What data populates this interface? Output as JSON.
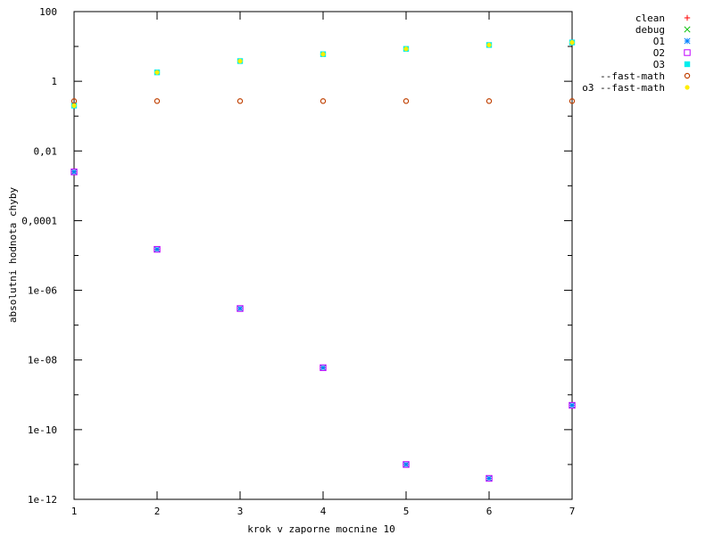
{
  "chart_data": {
    "type": "scatter",
    "title": "",
    "xlabel": "krok v zaporne mocnine 10",
    "ylabel": "absolutni hodnota chyby",
    "x": [
      1,
      2,
      3,
      4,
      5,
      6,
      7
    ],
    "xlim": [
      1,
      7
    ],
    "x_ticks": [
      "1",
      "2",
      "3",
      "4",
      "5",
      "6",
      "7"
    ],
    "ylim": [
      1e-12,
      100
    ],
    "yscale": "log",
    "y_ticks": [
      {
        "value": 100,
        "label": "100"
      },
      {
        "value": 1,
        "label": "1"
      },
      {
        "value": 0.01,
        "label": "0,01"
      },
      {
        "value": 0.0001,
        "label": "0,0001"
      },
      {
        "value": 1e-06,
        "label": "1e-06"
      },
      {
        "value": 1e-08,
        "label": "1e-08"
      },
      {
        "value": 1e-10,
        "label": "1e-10"
      },
      {
        "value": 1e-12,
        "label": "1e-12"
      }
    ],
    "grid": false,
    "legend_position": "outside-right",
    "series": [
      {
        "name": "clean",
        "marker": "plus",
        "color": "#ff0000",
        "values": [
          0.0025,
          1.5e-05,
          3e-07,
          6e-09,
          1e-11,
          4e-12,
          5e-10
        ]
      },
      {
        "name": "debug",
        "marker": "cross",
        "color": "#00c000",
        "values": [
          0.0025,
          1.5e-05,
          3e-07,
          6e-09,
          1e-11,
          4e-12,
          5e-10
        ]
      },
      {
        "name": "O1",
        "marker": "star",
        "color": "#0080ff",
        "values": [
          0.0025,
          1.5e-05,
          3e-07,
          6e-09,
          1e-11,
          4e-12,
          5e-10
        ]
      },
      {
        "name": "O2",
        "marker": "open-square",
        "color": "#c000ff",
        "values": [
          0.0025,
          1.5e-05,
          3e-07,
          6e-09,
          1e-11,
          4e-12,
          5e-10
        ]
      },
      {
        "name": "O3",
        "marker": "filled-square",
        "color": "#00eeee",
        "values": [
          0.2,
          1.8,
          3.8,
          6,
          8.5,
          11,
          13
        ]
      },
      {
        "name": "--fast-math",
        "marker": "open-circle",
        "color": "#c04000",
        "values": [
          0.27,
          0.27,
          0.27,
          0.27,
          0.27,
          0.27,
          0.27
        ]
      },
      {
        "name": "o3 --fast-math",
        "marker": "filled-circle",
        "color": "#ffee00",
        "values": [
          0.2,
          1.8,
          3.8,
          6,
          8.5,
          11,
          13
        ]
      }
    ]
  }
}
